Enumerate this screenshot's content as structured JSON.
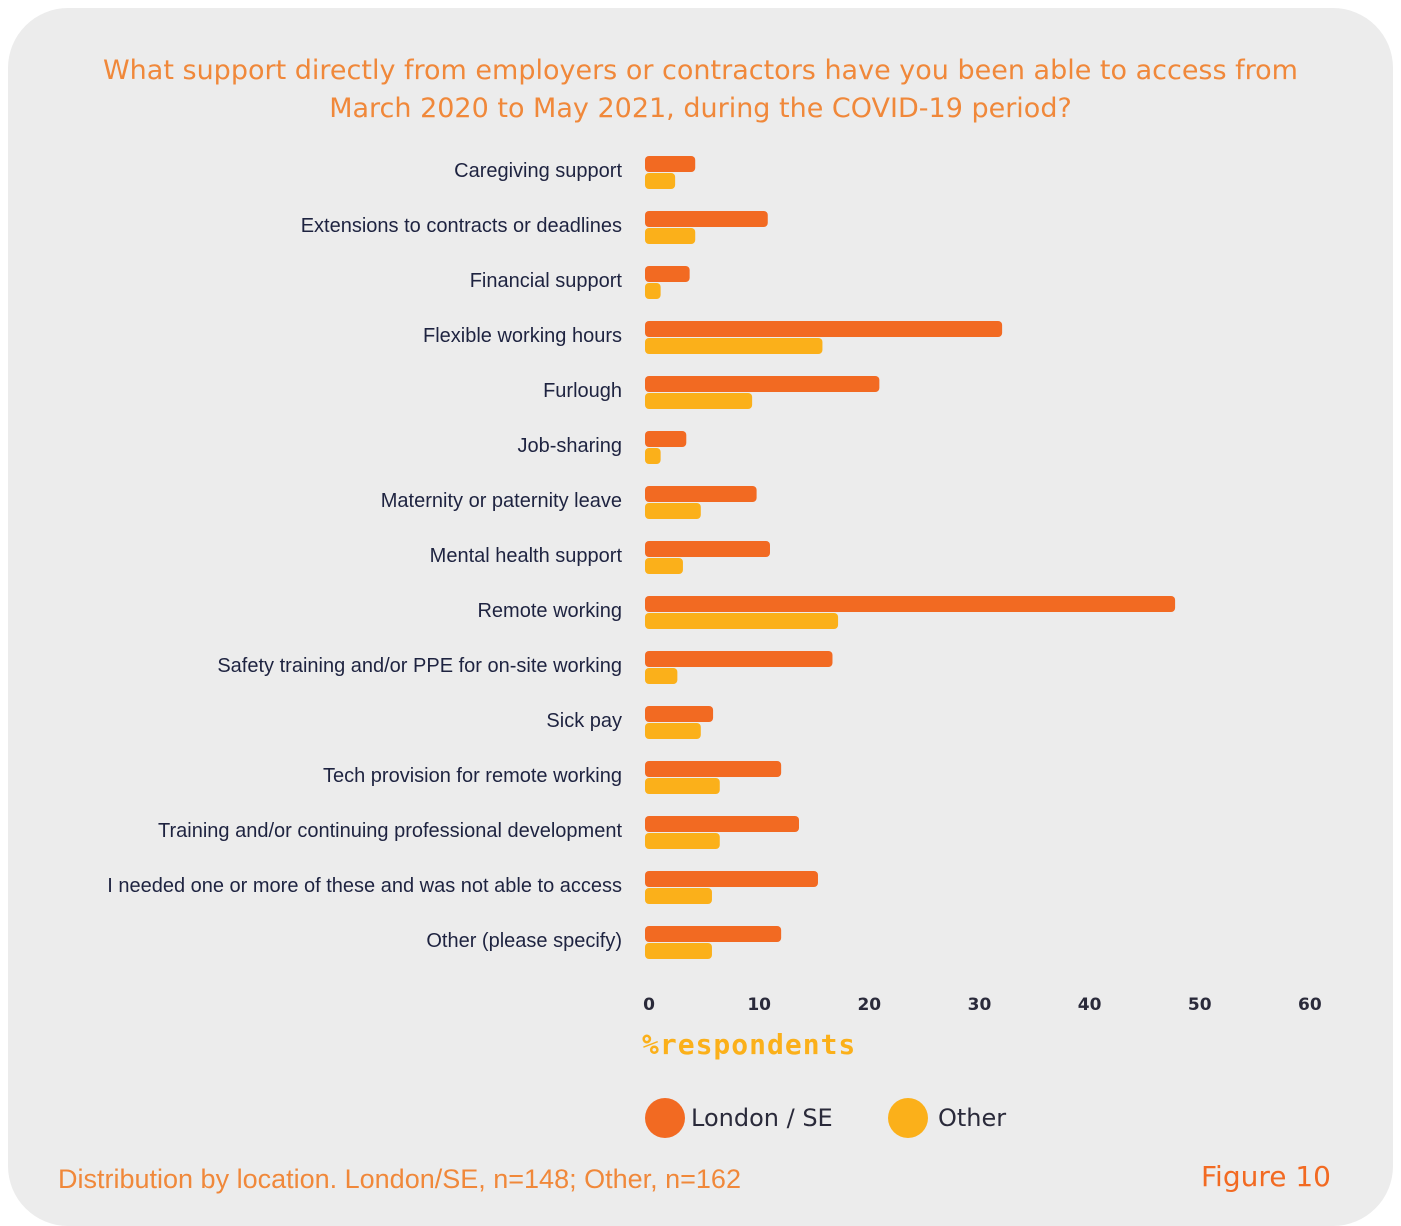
{
  "title_line1": "What support directly from employers or contractors have you been able to access from",
  "title_line2": "March 2020 to May 2021, during the COVID-19 period?",
  "footnote": "Distribution by location. London/SE, n=148; Other, n=162",
  "figure_label": "Figure 10",
  "colors": {
    "london": "#f26a22",
    "other": "#fbb01a",
    "background": "#ececec",
    "title": "#f0883a"
  },
  "chart_data": {
    "type": "bar",
    "orientation": "horizontal",
    "xlabel": "%respondents",
    "xlim": [
      0,
      60
    ],
    "xticks": [
      0,
      10,
      20,
      30,
      40,
      50,
      60
    ],
    "categories": [
      "Caregiving support",
      "Extensions to contracts or deadlines",
      "Financial support",
      "Flexible working hours",
      "Furlough",
      "Job-sharing",
      "Maternity or paternity leave",
      "Mental health support",
      "Remote working",
      "Safety training and/or PPE for on-site working",
      "Sick pay",
      "Tech provision for remote working",
      "Training and/or continuing professional development",
      "I needed one or more of these and was not able to access",
      "Other (please specify)"
    ],
    "series": [
      {
        "name": "London / SE",
        "values": [
          4.5,
          11,
          4,
          32,
          21,
          3.7,
          10,
          11.2,
          47.5,
          16.8,
          6.1,
          12.2,
          13.8,
          15.5,
          12.2
        ]
      },
      {
        "name": "Other",
        "values": [
          2.7,
          4.5,
          1.4,
          15.9,
          9.6,
          1.4,
          5,
          3.4,
          17.3,
          2.9,
          5,
          6.7,
          6.7,
          6,
          6
        ]
      }
    ],
    "legend": "bottom",
    "grid": false
  }
}
